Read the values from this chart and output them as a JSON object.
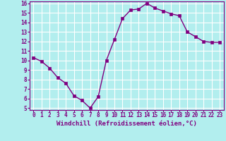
{
  "hours": [
    0,
    1,
    2,
    3,
    4,
    5,
    6,
    7,
    8,
    9,
    10,
    11,
    12,
    13,
    14,
    15,
    16,
    17,
    18,
    19,
    20,
    21,
    22,
    23
  ],
  "values": [
    10.3,
    9.9,
    9.2,
    8.2,
    7.6,
    6.3,
    5.8,
    5.0,
    6.2,
    10.0,
    12.2,
    14.4,
    15.3,
    15.4,
    16.0,
    15.5,
    15.2,
    14.9,
    14.7,
    13.0,
    12.5,
    12.0,
    11.9,
    11.9
  ],
  "line_color": "#800080",
  "marker_color": "#800080",
  "bg_color": "#b2eeee",
  "grid_color": "#ffffff",
  "xlabel": "Windchill (Refroidissement éolien,°C)",
  "xlabel_color": "#800080",
  "tick_color": "#800080",
  "ylim_min": 5,
  "ylim_max": 16,
  "xlim_min": 0,
  "xlim_max": 23,
  "yticks": [
    5,
    6,
    7,
    8,
    9,
    10,
    11,
    12,
    13,
    14,
    15,
    16
  ],
  "xticks": [
    0,
    1,
    2,
    3,
    4,
    5,
    6,
    7,
    8,
    9,
    10,
    11,
    12,
    13,
    14,
    15,
    16,
    17,
    18,
    19,
    20,
    21,
    22,
    23
  ],
  "spine_color": "#800080",
  "tick_fontsize": 5.5,
  "xlabel_fontsize": 6.5,
  "linewidth": 1.0,
  "markersize": 2.5
}
